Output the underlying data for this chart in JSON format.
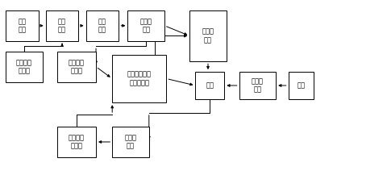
{
  "boxes": {
    "光伏\n电池": [
      0.015,
      0.76,
      0.085,
      0.18
    ],
    "功率\n模块": [
      0.118,
      0.76,
      0.085,
      0.18
    ],
    "滤波\n电感": [
      0.222,
      0.76,
      0.085,
      0.18
    ],
    "电流传\n感器": [
      0.33,
      0.76,
      0.095,
      0.18
    ],
    "第一断\n路器": [
      0.49,
      0.64,
      0.095,
      0.3
    ],
    "脉冲信号\n产生器": [
      0.015,
      0.52,
      0.095,
      0.18
    ],
    "电流信号\n采集器": [
      0.148,
      0.52,
      0.1,
      0.18
    ],
    "随机序列相关\n孤岛检测器": [
      0.29,
      0.4,
      0.14,
      0.28
    ],
    "负载": [
      0.505,
      0.42,
      0.075,
      0.16
    ],
    "第二断\n路器": [
      0.618,
      0.42,
      0.095,
      0.16
    ],
    "电网": [
      0.745,
      0.42,
      0.065,
      0.16
    ],
    "电压传\n感器": [
      0.29,
      0.08,
      0.095,
      0.18
    ],
    "电压信号\n采集器": [
      0.148,
      0.08,
      0.1,
      0.18
    ]
  },
  "bg_color": "#ffffff",
  "box_edge_color": "#000000",
  "arrow_color": "#000000",
  "fontsize": 6.0
}
